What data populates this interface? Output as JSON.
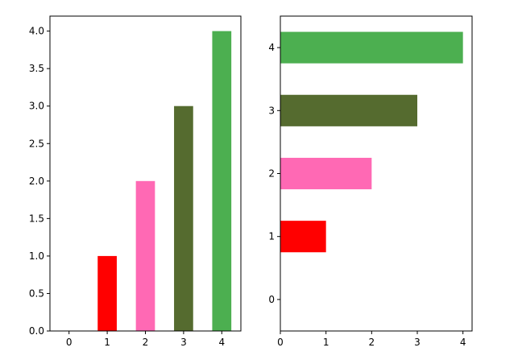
{
  "chart_data": [
    {
      "type": "bar",
      "orientation": "vertical",
      "categories": [
        "0",
        "1",
        "2",
        "3",
        "4"
      ],
      "values": [
        0,
        1,
        2,
        3,
        4
      ],
      "colors": [
        "#1f77b4",
        "#ff0000",
        "#ff69b4",
        "#556b2f",
        "#4caf50"
      ],
      "xlim": [
        -0.5,
        4.5
      ],
      "ylim": [
        0,
        4.2
      ],
      "xticks": [
        "0",
        "1",
        "2",
        "3",
        "4"
      ],
      "yticks": [
        "0.0",
        "0.5",
        "1.0",
        "1.5",
        "2.0",
        "2.5",
        "3.0",
        "3.5",
        "4.0"
      ],
      "title": "",
      "xlabel": "",
      "ylabel": "",
      "grid": false,
      "legend": false
    },
    {
      "type": "bar",
      "orientation": "horizontal",
      "categories": [
        "0",
        "1",
        "2",
        "3",
        "4"
      ],
      "values": [
        0,
        1,
        2,
        3,
        4
      ],
      "colors": [
        "#1f77b4",
        "#ff0000",
        "#ff69b4",
        "#556b2f",
        "#4caf50"
      ],
      "xlim": [
        0,
        4.2
      ],
      "ylim": [
        -0.5,
        4.5
      ],
      "xticks": [
        "0",
        "1",
        "2",
        "3",
        "4"
      ],
      "yticks": [
        "0",
        "1",
        "2",
        "3",
        "4"
      ],
      "title": "",
      "xlabel": "",
      "ylabel": "",
      "grid": false,
      "legend": false
    }
  ]
}
